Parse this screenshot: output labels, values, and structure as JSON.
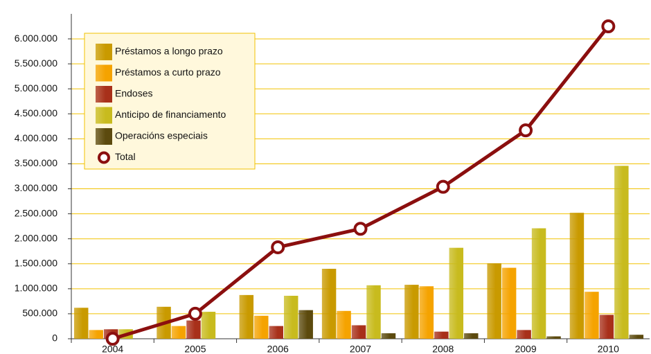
{
  "chart_data": {
    "type": "bar-line",
    "categories": [
      "2004",
      "2005",
      "2006",
      "2007",
      "2008",
      "2009",
      "2010"
    ],
    "series": [
      {
        "name": "Préstamos a longo prazo",
        "color": "#c99a00",
        "values": [
          620000,
          640000,
          875000,
          1400000,
          1080000,
          1510000,
          2520000
        ]
      },
      {
        "name": "Préstamos a curto prazo",
        "color": "#f5a300",
        "values": [
          175000,
          255000,
          460000,
          557000,
          1050000,
          1420000,
          940000
        ]
      },
      {
        "name": "Endoses",
        "color": "#a8301a",
        "values": [
          190000,
          366000,
          255000,
          270000,
          143000,
          175000,
          478000
        ]
      },
      {
        "name": "Anticipo de financiamento",
        "color": "#c8bb1e",
        "values": [
          190000,
          540000,
          860000,
          1070000,
          1820000,
          2210000,
          3460000
        ]
      },
      {
        "name": "Operacións especiais",
        "color": "#5c4a0e",
        "values": [
          0,
          0,
          573000,
          110000,
          110000,
          48000,
          80000
        ]
      },
      {
        "name": "Total",
        "color": "#8b0f0f",
        "type": "line",
        "values": [
          0,
          500000,
          1830000,
          2200000,
          3040000,
          4170000,
          6250000
        ]
      }
    ],
    "ylim": [
      0,
      6500000
    ],
    "yticks": [
      {
        "value": 0,
        "label": "0"
      },
      {
        "value": 500000,
        "label": "500.000"
      },
      {
        "value": 1000000,
        "label": "1.000.000"
      },
      {
        "value": 1500000,
        "label": "1.500.000"
      },
      {
        "value": 2000000,
        "label": "2.000.000"
      },
      {
        "value": 2500000,
        "label": "2.500.000"
      },
      {
        "value": 3000000,
        "label": "3.000.000"
      },
      {
        "value": 3500000,
        "label": "3.500.000"
      },
      {
        "value": 4000000,
        "label": "4.000.000"
      },
      {
        "value": 4500000,
        "label": "4.500.000"
      },
      {
        "value": 5000000,
        "label": "5.000.000"
      },
      {
        "value": 5500000,
        "label": "5.500.000"
      },
      {
        "value": 6000000,
        "label": "6.000.000"
      }
    ],
    "grid": true,
    "legend": "upper left"
  }
}
